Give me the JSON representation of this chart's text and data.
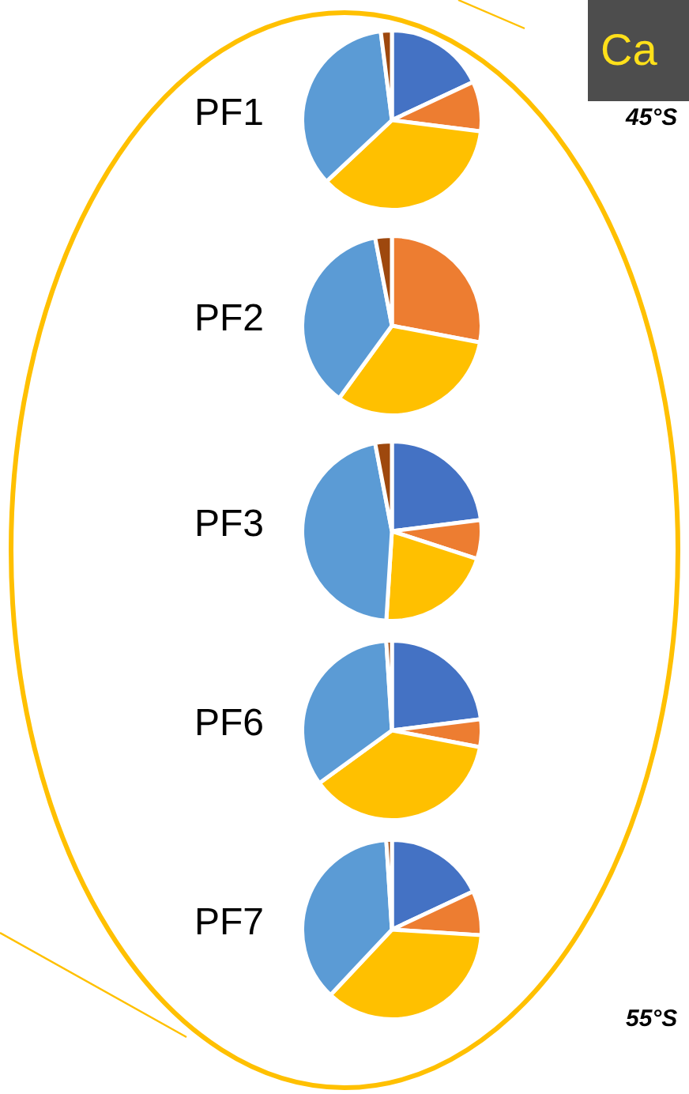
{
  "chart_data": [
    {
      "type": "pie",
      "title": "PF1",
      "categories": [
        null,
        null,
        null,
        null,
        null
      ],
      "values": [
        18,
        9,
        36,
        35,
        2
      ],
      "colors": [
        "#4472c4",
        "#ed7d31",
        "#ffc000",
        "#5b9bd5",
        "#9e480e"
      ],
      "legend": false,
      "annotations": [
        "Ca",
        "45°S"
      ]
    },
    {
      "type": "pie",
      "title": "PF2",
      "categories": [
        null,
        null,
        null,
        null,
        null
      ],
      "values": [
        0,
        28,
        32,
        37,
        3
      ],
      "colors": [
        "#4472c4",
        "#ed7d31",
        "#ffc000",
        "#5b9bd5",
        "#9e480e"
      ],
      "legend": false
    },
    {
      "type": "pie",
      "title": "PF3",
      "categories": [
        null,
        null,
        null,
        null,
        null
      ],
      "values": [
        23,
        7,
        21,
        46,
        3
      ],
      "colors": [
        "#4472c4",
        "#ed7d31",
        "#ffc000",
        "#5b9bd5",
        "#9e480e"
      ],
      "legend": false
    },
    {
      "type": "pie",
      "title": "PF6",
      "categories": [
        null,
        null,
        null,
        null,
        null
      ],
      "values": [
        23,
        5,
        37,
        34,
        1
      ],
      "colors": [
        "#4472c4",
        "#ed7d31",
        "#ffc000",
        "#5b9bd5",
        "#9e480e"
      ],
      "legend": false
    },
    {
      "type": "pie",
      "title": "PF7",
      "categories": [
        null,
        null,
        null,
        null,
        null
      ],
      "values": [
        18,
        8,
        36,
        37,
        1
      ],
      "colors": [
        "#4472c4",
        "#ed7d31",
        "#ffc000",
        "#5b9bd5",
        "#9e480e"
      ],
      "legend": false,
      "annotations": [
        "55°S"
      ]
    }
  ]
}
